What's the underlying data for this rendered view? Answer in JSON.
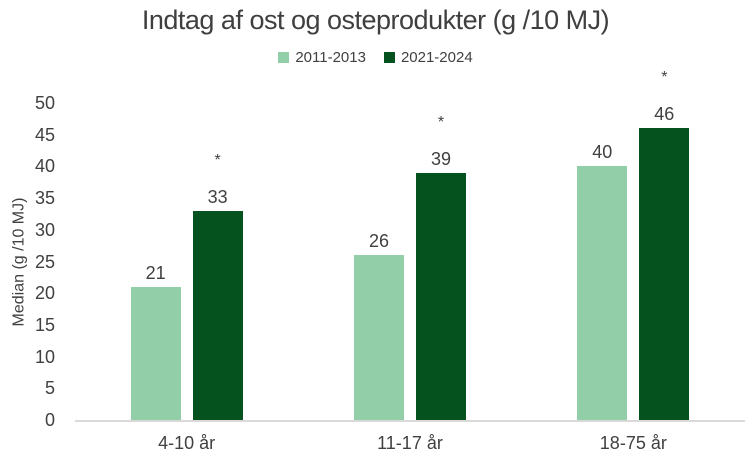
{
  "chart_data": {
    "type": "bar",
    "title": "Indtag af ost og osteprodukter (g /10 MJ)",
    "ylabel": "Median (g /10 MJ)",
    "xlabel": "",
    "categories": [
      "4-10 år",
      "11-17 år",
      "18-75 år"
    ],
    "series": [
      {
        "name": "2011-2013",
        "color": "#92CEA8",
        "values": [
          21,
          26,
          40
        ],
        "annotations": [
          "",
          "",
          ""
        ]
      },
      {
        "name": "2021-2024",
        "color": "#05521F",
        "values": [
          33,
          39,
          46
        ],
        "annotations": [
          "*",
          "*",
          "*"
        ]
      }
    ],
    "ylim": [
      0,
      50
    ],
    "yticks": [
      0,
      5,
      10,
      15,
      20,
      25,
      30,
      35,
      40,
      45,
      50
    ],
    "grid": false,
    "legend_position": "top",
    "axis_line_color": "#D9D9D9",
    "text_color": "#404040"
  }
}
